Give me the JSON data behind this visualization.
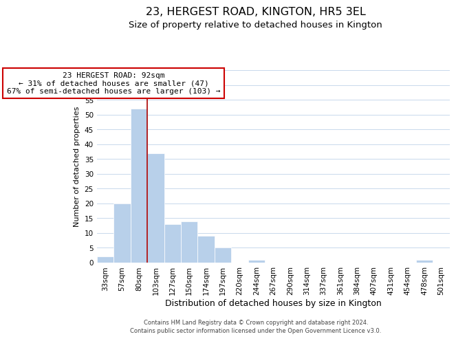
{
  "title": "23, HERGEST ROAD, KINGTON, HR5 3EL",
  "subtitle": "Size of property relative to detached houses in Kington",
  "xlabel": "Distribution of detached houses by size in Kington",
  "ylabel": "Number of detached properties",
  "bin_labels": [
    "33sqm",
    "57sqm",
    "80sqm",
    "103sqm",
    "127sqm",
    "150sqm",
    "174sqm",
    "197sqm",
    "220sqm",
    "244sqm",
    "267sqm",
    "290sqm",
    "314sqm",
    "337sqm",
    "361sqm",
    "384sqm",
    "407sqm",
    "431sqm",
    "454sqm",
    "478sqm",
    "501sqm"
  ],
  "bar_values": [
    2,
    20,
    52,
    37,
    13,
    14,
    9,
    5,
    0,
    1,
    0,
    0,
    0,
    0,
    0,
    0,
    0,
    0,
    0,
    1,
    0
  ],
  "bar_color": "#b8d0ea",
  "vline_x_index": 2.5,
  "vline_color": "#aa0000",
  "ylim": [
    0,
    65
  ],
  "yticks": [
    0,
    5,
    10,
    15,
    20,
    25,
    30,
    35,
    40,
    45,
    50,
    55,
    60,
    65
  ],
  "annotation_title": "23 HERGEST ROAD: 92sqm",
  "annotation_line1": "← 31% of detached houses are smaller (47)",
  "annotation_line2": "67% of semi-detached houses are larger (103) →",
  "annotation_box_color": "#ffffff",
  "annotation_box_edge": "#cc0000",
  "footer_line1": "Contains HM Land Registry data © Crown copyright and database right 2024.",
  "footer_line2": "Contains public sector information licensed under the Open Government Licence v3.0.",
  "background_color": "#ffffff",
  "grid_color": "#c8d8ec",
  "title_fontsize": 11.5,
  "subtitle_fontsize": 9.5,
  "xlabel_fontsize": 9,
  "ylabel_fontsize": 8,
  "tick_fontsize": 7.5,
  "annot_fontsize": 8,
  "footer_fontsize": 6
}
